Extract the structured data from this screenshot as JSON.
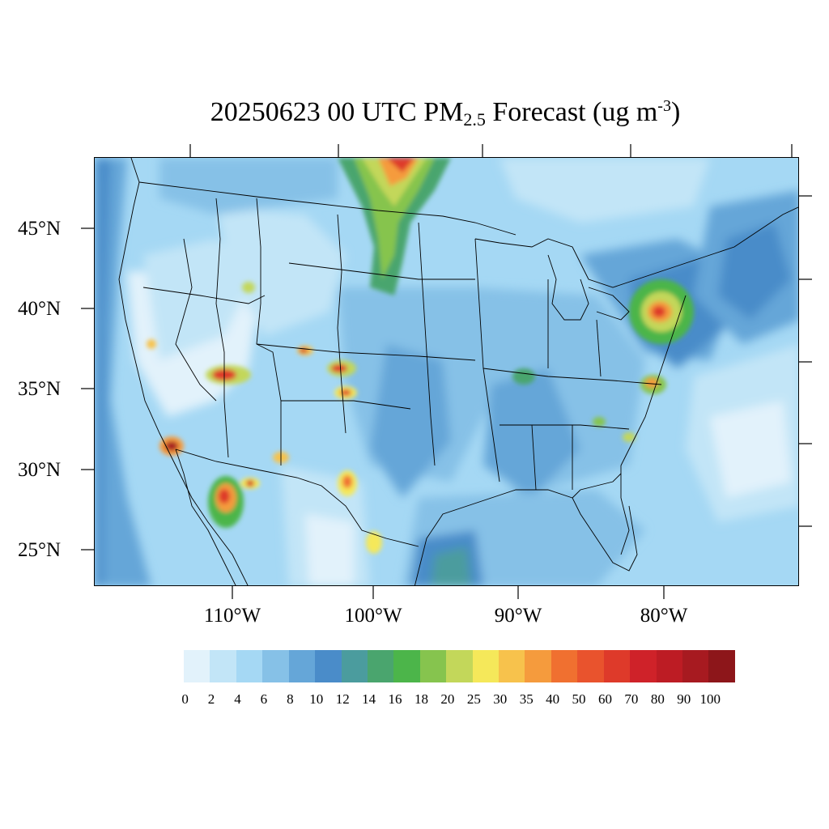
{
  "title": {
    "prefix": "20250623 00 UTC PM",
    "sub": "2.5",
    "mid": " Forecast (ug m",
    "sup": "-3",
    "suffix": ")"
  },
  "map": {
    "lat_labels": [
      "45°N",
      "40°N",
      "35°N",
      "30°N",
      "25°N"
    ],
    "lon_labels": [
      "110°W",
      "100°W",
      "90°W",
      "80°W"
    ]
  },
  "colorbar": {
    "colors": [
      "#e2f2fb",
      "#c2e5f7",
      "#a5d8f4",
      "#86c1e7",
      "#65a6d8",
      "#4a8cc9",
      "#4b9c9e",
      "#4aa56e",
      "#4cb54a",
      "#86c44e",
      "#c3d75a",
      "#f5e85a",
      "#f7c24c",
      "#f59b3d",
      "#f07030",
      "#e9532d",
      "#de3a2a",
      "#cf2229",
      "#bd1c24",
      "#a71a20",
      "#8d161a"
    ],
    "labels": [
      "0",
      "2",
      "4",
      "6",
      "8",
      "10",
      "12",
      "14",
      "16",
      "18",
      "20",
      "25",
      "30",
      "35",
      "40",
      "50",
      "60",
      "70",
      "80",
      "90",
      "100"
    ]
  }
}
